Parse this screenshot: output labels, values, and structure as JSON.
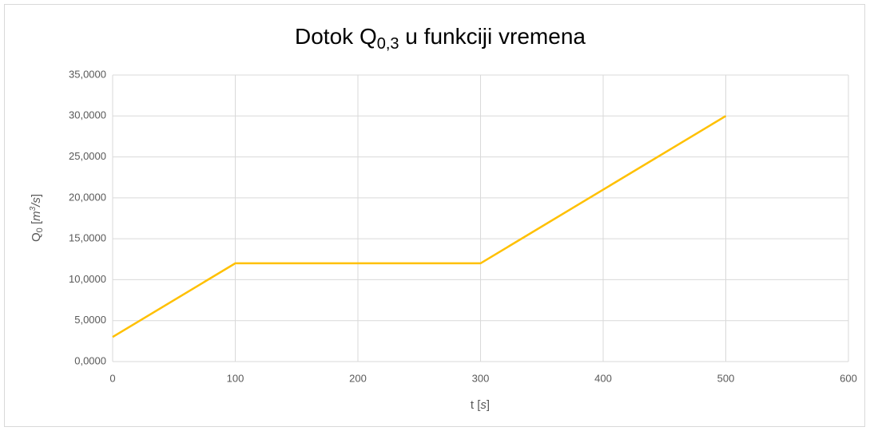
{
  "chart_data": {
    "type": "line",
    "title": [
      "Dotok Q",
      "0,3",
      " u funkciji vremena"
    ],
    "xlabel": [
      "t [",
      "s",
      "]"
    ],
    "ylabel": [
      "Q",
      "0",
      " [",
      "m",
      "3",
      "/",
      "s",
      "]"
    ],
    "series": [
      {
        "color": "#ffc000",
        "x": [
          0,
          100,
          300,
          500
        ],
        "values": [
          3,
          12,
          12,
          30
        ]
      }
    ],
    "xlim": [
      0,
      600
    ],
    "xticks": [
      0,
      100,
      200,
      300,
      400,
      500,
      600
    ],
    "ylim": [
      0,
      35
    ],
    "yticks": [
      {
        "value": 0,
        "label": "0,0000"
      },
      {
        "value": 5,
        "label": "5,0000"
      },
      {
        "value": 10,
        "label": "10,0000"
      },
      {
        "value": 15,
        "label": "15,0000"
      },
      {
        "value": 20,
        "label": "20,0000"
      },
      {
        "value": 25,
        "label": "25,0000"
      },
      {
        "value": 30,
        "label": "30,0000"
      },
      {
        "value": 35,
        "label": "35,0000"
      }
    ],
    "grid": true
  }
}
